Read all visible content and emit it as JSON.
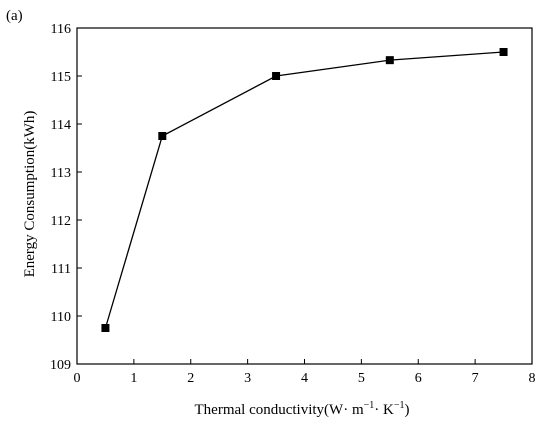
{
  "panel_label": "(a)",
  "chart_data": {
    "type": "line",
    "xlabel": "Thermal conductivity(W· m",
    "xlabel_sup1": "−1",
    "xlabel_mid": "· K",
    "xlabel_sup2": "−1",
    "xlabel_end": ")",
    "ylabel": "Energy Consumption(kWh)",
    "xlim": [
      0,
      8
    ],
    "ylim": [
      109,
      116
    ],
    "xticks": [
      0,
      1,
      2,
      3,
      4,
      5,
      6,
      7,
      8
    ],
    "yticks": [
      109,
      110,
      111,
      112,
      113,
      114,
      115,
      116
    ],
    "grid": false,
    "marker": "square",
    "series": [
      {
        "x": [
          0.5,
          1.5,
          3.5,
          5.5,
          7.5
        ],
        "values": [
          109.75,
          113.75,
          115.0,
          115.33,
          115.5
        ]
      }
    ]
  }
}
